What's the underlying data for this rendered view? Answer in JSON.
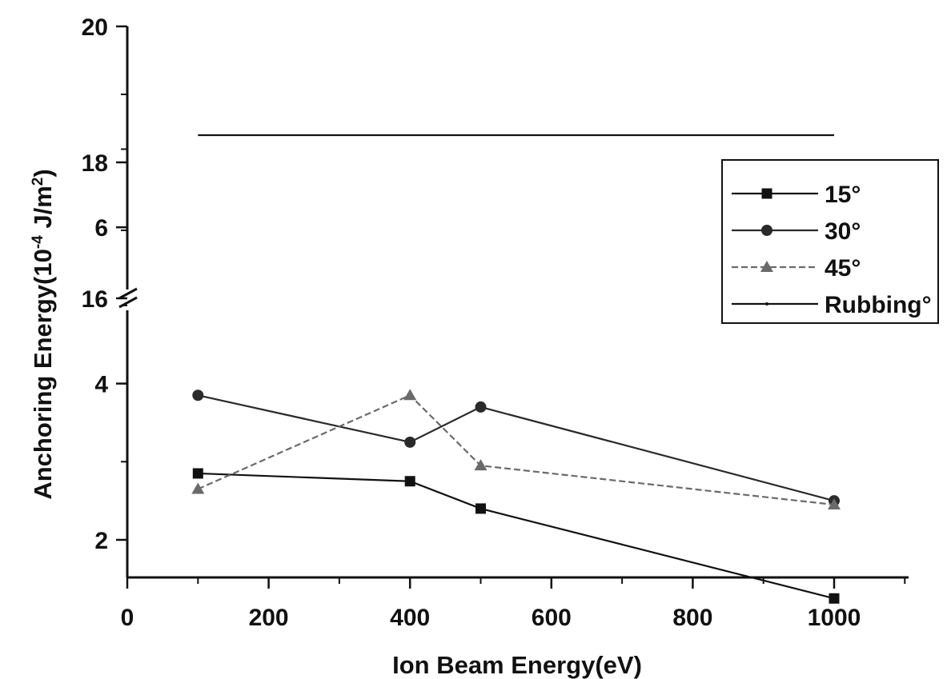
{
  "chart_data": {
    "type": "line",
    "xlabel": "Ion Beam Energy(eV)",
    "ylabel": {
      "prefix": "Anchoring Energy(10",
      "exp1": "-4",
      "middle": " J/m",
      "exp2": "2",
      "suffix": ")"
    },
    "xlim": [
      0,
      1100
    ],
    "x_ticks": [
      0,
      200,
      400,
      600,
      800,
      1000
    ],
    "x_tick_labels": [
      "0",
      "200",
      "400",
      "600",
      "800",
      "1000"
    ],
    "y_axis_break": true,
    "y_lower_range": [
      1,
      7.5
    ],
    "y_upper_range": [
      16,
      20
    ],
    "y_ticks": [
      2,
      4,
      6,
      16,
      18,
      20
    ],
    "y_tick_labels": [
      "2",
      "4",
      "6",
      "16",
      "18",
      "20"
    ],
    "grid": false,
    "legend_position": "top-right",
    "series": [
      {
        "name": "15°",
        "marker": "square",
        "color": "#111111",
        "x": [
          100,
          400,
          500,
          1000
        ],
        "y": [
          2.85,
          2.75,
          2.4,
          1.25
        ]
      },
      {
        "name": "30°",
        "marker": "circle",
        "color": "#2a2a2a",
        "x": [
          100,
          400,
          500,
          1000
        ],
        "y": [
          3.85,
          3.25,
          3.7,
          2.5
        ]
      },
      {
        "name": "45°",
        "marker": "triangle",
        "color": "#6a6a6a",
        "x": [
          100,
          400,
          500,
          1000
        ],
        "y": [
          2.65,
          3.85,
          2.95,
          2.45
        ]
      },
      {
        "name": "Rubbing°",
        "marker": "small-dot",
        "color": "#111111",
        "x": [
          100,
          1000
        ],
        "y": [
          18.4,
          18.4
        ]
      }
    ]
  }
}
